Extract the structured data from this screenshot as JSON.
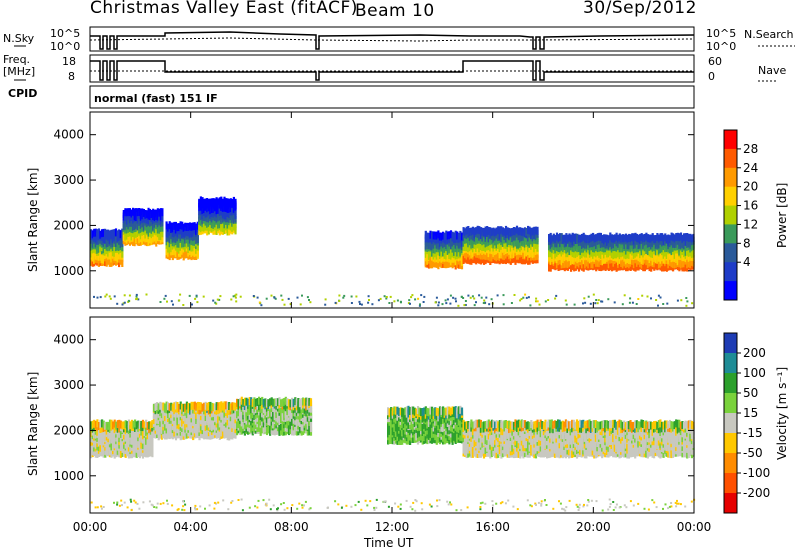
{
  "header": {
    "station": "Christmas Valley East (fitACF)",
    "beam": "Beam 10",
    "date": "30/Sep/2012",
    "mode": "normal (fast) 151 IF"
  },
  "status": {
    "left_top": "N.Sky",
    "left_top_ticks": [
      "10^5",
      "10^0"
    ],
    "right_top": "N.Search",
    "right_top_ticks": [
      "10^5",
      "10^0"
    ],
    "left_mid": "Freq.\n[MHz]",
    "left_mid_ticks": [
      "18",
      "8"
    ],
    "right_mid": "Nave",
    "right_mid_ticks": [
      "60",
      "0"
    ],
    "cpid": "CPID"
  },
  "axes": {
    "ylabel": "Slant Range [km]",
    "xlabel": "Time UT",
    "yticks": [
      "4000",
      "3000",
      "2000",
      "1000"
    ],
    "xticks": [
      "00:00",
      "04:00",
      "08:00",
      "12:00",
      "16:00",
      "20:00",
      "00:00"
    ]
  },
  "power_bar": {
    "label": "Power [dB]",
    "ticks": [
      "28",
      "24",
      "20",
      "16",
      "12",
      "8",
      "4"
    ],
    "colors": [
      "#ff0000",
      "#ff5a00",
      "#ff9a00",
      "#ffd000",
      "#b0d000",
      "#3a9a5a",
      "#2a5a9a",
      "#1e3cc8",
      "#0000ff"
    ]
  },
  "velocity_bar": {
    "label": "Velocity [m s⁻¹]",
    "ticks": [
      "200",
      "100",
      "50",
      "15",
      "-15",
      "-50",
      "-100",
      "-200"
    ],
    "colors": [
      "#1e3cb4",
      "#1e8c96",
      "#2ca02c",
      "#7ad23c",
      "#c8c8c0",
      "#ffc800",
      "#ff8c00",
      "#ff5000",
      "#e60000"
    ]
  },
  "chart_data": [
    {
      "type": "heatmap",
      "name": "power",
      "x_range_hours": [
        0,
        24
      ],
      "ylim": [
        180,
        4500
      ],
      "bands": [
        {
          "t0": 0.0,
          "t1": 1.3,
          "range_km": 1200,
          "power_db": 26
        },
        {
          "t0": 1.3,
          "t1": 2.9,
          "range_km": 1650,
          "power_db": 24
        },
        {
          "t0": 3.0,
          "t1": 4.3,
          "range_km": 1350,
          "power_db": 24
        },
        {
          "t0": 4.3,
          "t1": 5.8,
          "range_km": 1900,
          "power_db": 20
        },
        {
          "t0": 13.3,
          "t1": 14.8,
          "range_km": 1150,
          "power_db": 26
        },
        {
          "t0": 14.8,
          "t1": 17.8,
          "range_km": 1250,
          "power_db": 28
        },
        {
          "t0": 18.2,
          "t1": 24.0,
          "range_km": 1100,
          "power_db": 28
        }
      ]
    },
    {
      "type": "heatmap",
      "name": "velocity",
      "x_range_hours": [
        0,
        24
      ],
      "ylim": [
        180,
        4500
      ],
      "bands": [
        {
          "t0": 0.0,
          "t1": 2.5,
          "range_km": 1500,
          "velocity": 0
        },
        {
          "t0": 2.5,
          "t1": 5.8,
          "range_km": 1900,
          "velocity": 0
        },
        {
          "t0": 5.8,
          "t1": 8.8,
          "range_km": 2000,
          "velocity": 20
        },
        {
          "t0": 11.8,
          "t1": 14.8,
          "range_km": 1800,
          "velocity": 30
        },
        {
          "t0": 14.8,
          "t1": 24.0,
          "range_km": 1500,
          "velocity": 0
        }
      ]
    }
  ]
}
